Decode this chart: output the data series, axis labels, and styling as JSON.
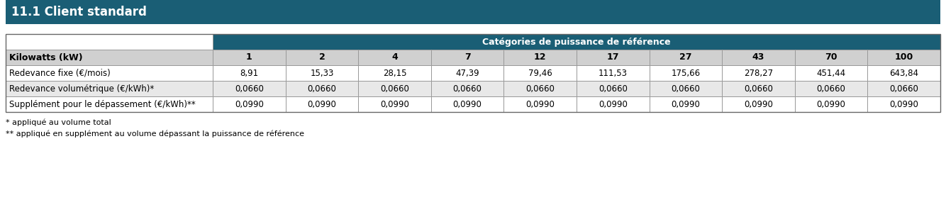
{
  "title": "11.1 Client standard",
  "title_bg": "#1a5e75",
  "header_label": "Catégories de puissance de référence",
  "header_bg": "#1a5e75",
  "header_text_color": "#ffffff",
  "col_headers": [
    "1",
    "2",
    "4",
    "7",
    "12",
    "17",
    "27",
    "43",
    "70",
    "100"
  ],
  "row_headers": [
    "Kilowatts (kW)",
    "Redevance fixe (€/mois)",
    "Redevance volumétrique (€/kWh)*",
    "Supplément pour le dépassement (€/kWh)**"
  ],
  "data": [
    [
      "1",
      "2",
      "4",
      "7",
      "12",
      "17",
      "27",
      "43",
      "70",
      "100"
    ],
    [
      "8,91",
      "15,33",
      "28,15",
      "47,39",
      "79,46",
      "111,53",
      "175,66",
      "278,27",
      "451,44",
      "643,84"
    ],
    [
      "0,0660",
      "0,0660",
      "0,0660",
      "0,0660",
      "0,0660",
      "0,0660",
      "0,0660",
      "0,0660",
      "0,0660",
      "0,0660"
    ],
    [
      "0,0990",
      "0,0990",
      "0,0990",
      "0,0990",
      "0,0990",
      "0,0990",
      "0,0990",
      "0,0990",
      "0,0990",
      "0,0990"
    ]
  ],
  "footnote1": "* appliqué au volume total",
  "footnote2": "** appliqué en supplément au volume dépassant la puissance de référence",
  "row_header_bg_white": "#ffffff",
  "row_header_bg_grey": "#e8e8e8",
  "cell_bg_white": "#ffffff",
  "cell_bg_grey": "#e8e8e8",
  "border_color": "#999999",
  "text_color_dark": "#000000",
  "col_header_bg": "#d0d0d0",
  "title_font_size": 12,
  "footnote_font_size": 8,
  "header_font_size": 9,
  "data_font_size": 8.5
}
